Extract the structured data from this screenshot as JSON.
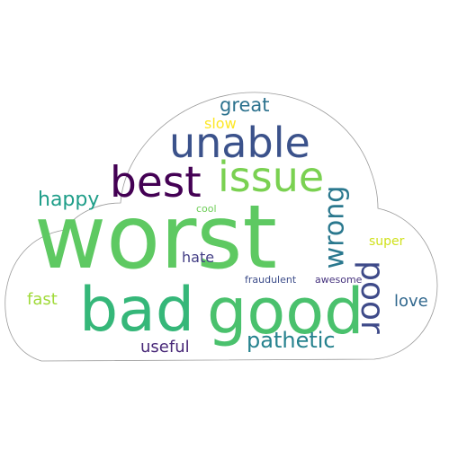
{
  "words": [
    {
      "id": "worst",
      "text": "worst",
      "color": "#5ec962"
    },
    {
      "id": "good",
      "text": "good",
      "color": "#4ac16d"
    },
    {
      "id": "bad",
      "text": "bad",
      "color": "#35b779"
    },
    {
      "id": "unable",
      "text": "unable",
      "color": "#3b528b"
    },
    {
      "id": "best",
      "text": "best",
      "color": "#440154"
    },
    {
      "id": "issue",
      "text": "issue",
      "color": "#7ad151"
    },
    {
      "id": "wrong",
      "text": "wrong",
      "color": "#2a788e"
    },
    {
      "id": "poor",
      "text": "poor",
      "color": "#3e4a89"
    },
    {
      "id": "pathetic",
      "text": "pathetic",
      "color": "#26828e"
    },
    {
      "id": "happy",
      "text": "happy",
      "color": "#1f9e89"
    },
    {
      "id": "great",
      "text": "great",
      "color": "#2c728e"
    },
    {
      "id": "slow",
      "text": "slow",
      "color": "#fde725"
    },
    {
      "id": "fast",
      "text": "fast",
      "color": "#a0da39"
    },
    {
      "id": "love",
      "text": "love",
      "color": "#31688e"
    },
    {
      "id": "useful",
      "text": "useful",
      "color": "#482878"
    },
    {
      "id": "hate",
      "text": "hate",
      "color": "#433e85"
    },
    {
      "id": "super",
      "text": "super",
      "color": "#d0e11c"
    },
    {
      "id": "cool",
      "text": "cool",
      "color": "#6ece58"
    },
    {
      "id": "fraudulent",
      "text": "fraudulent",
      "color": "#3d4d8a"
    },
    {
      "id": "awesome",
      "text": "awesome",
      "color": "#46337e"
    }
  ]
}
